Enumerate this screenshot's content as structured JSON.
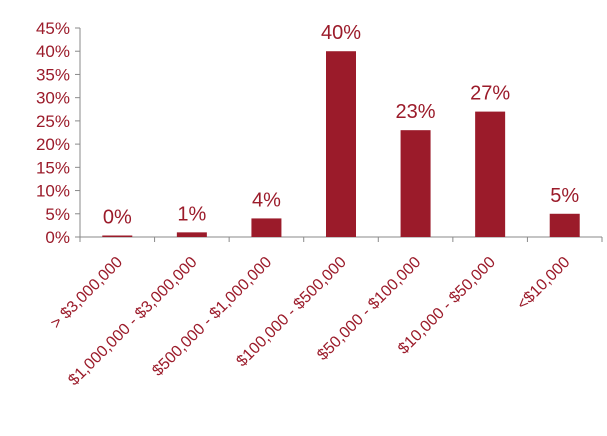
{
  "chart_data": {
    "type": "bar",
    "title": "",
    "xlabel": "",
    "ylabel": "",
    "categories": [
      "> $3,000,000",
      "$1,000,000 - $3,000,000",
      "$500,000 - $1,000,000",
      "$100,000 - $500,000",
      "$50,000 - $100,000",
      "$10,000 - $50,000",
      "<$10,000"
    ],
    "values": [
      0,
      1,
      4,
      40,
      23,
      27,
      5
    ],
    "data_labels": [
      "0%",
      "1%",
      "4%",
      "40%",
      "23%",
      "27%",
      "5%"
    ],
    "ylim": [
      0,
      45
    ],
    "y_ticks": [
      0,
      5,
      10,
      15,
      20,
      25,
      30,
      35,
      40,
      45
    ],
    "y_tick_labels": [
      "0%",
      "5%",
      "10%",
      "15%",
      "20%",
      "25%",
      "30%",
      "35%",
      "40%",
      "45%"
    ],
    "grid": false,
    "legend": "none",
    "colors": {
      "bar": "#9b1b2a",
      "text": "#9b1b2a",
      "axis": "#8a8a8a"
    }
  }
}
